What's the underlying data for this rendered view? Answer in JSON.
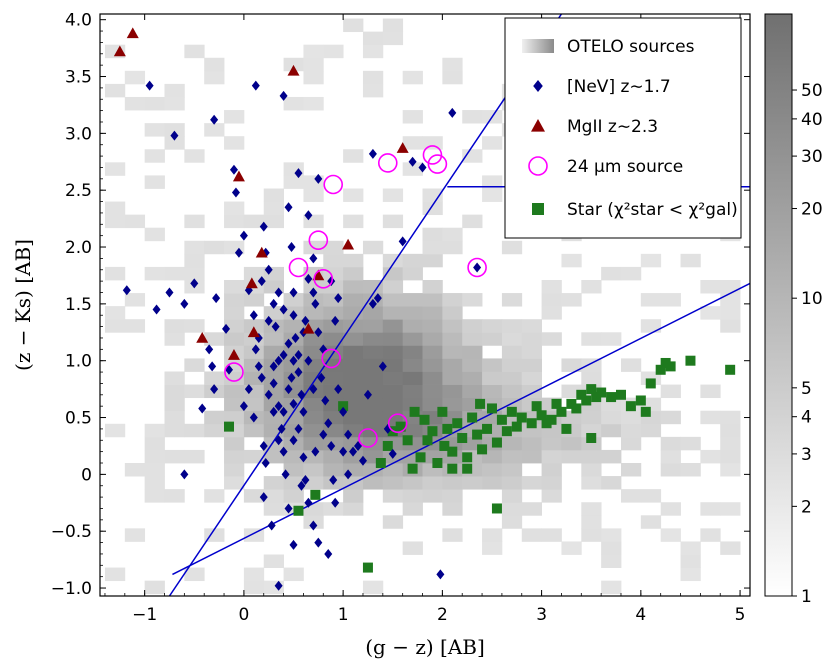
{
  "chart_data": {
    "type": "scatter",
    "xlabel": "(g − z) [AB]",
    "ylabel": "(z − Ks) [AB]",
    "xlim": [
      -1.45,
      5.1
    ],
    "ylim": [
      -1.07,
      4.05
    ],
    "xticks": [
      -1,
      0,
      1,
      2,
      3,
      4,
      5
    ],
    "xtick_labels": [
      "−1",
      "0",
      "1",
      "2",
      "3",
      "4",
      "5"
    ],
    "yticks": [
      -1.0,
      -0.5,
      0.0,
      0.5,
      1.0,
      1.5,
      2.0,
      2.5,
      3.0,
      3.5,
      4.0
    ],
    "ytick_labels": [
      "−1.0",
      "−0.5",
      "0",
      "0.5",
      "1.0",
      "1.5",
      "2.0",
      "2.5",
      "3.0",
      "3.5",
      "4.0"
    ],
    "grid": false,
    "legend_position": "top-right",
    "legend": [
      {
        "key": "otelo",
        "label": "OTELO sources"
      },
      {
        "key": "nev",
        "label": "[NeV] z∼1.7"
      },
      {
        "key": "mgii",
        "label": "MgII z∼2.3"
      },
      {
        "key": "mips",
        "label": "24 μm source"
      },
      {
        "key": "star",
        "label": "Star (χ²star < χ²gal)"
      }
    ],
    "colorbar": {
      "scale": "log",
      "range": [
        1,
        90
      ],
      "ticks": [
        1,
        2,
        3,
        4,
        5,
        10,
        20,
        30,
        40,
        50
      ],
      "tick_labels": [
        "1",
        "2",
        "3",
        "4",
        "5",
        "10",
        "20",
        "30",
        "40",
        "50"
      ]
    },
    "colors": {
      "nev": "#00008b",
      "mgii": "#8b0000",
      "mips": "#ff00ff",
      "star": "#1e7a1e",
      "lines": "#0000cc"
    },
    "series": [
      {
        "name": "[NeV] z∼1.7",
        "marker": "diamond",
        "points": [
          [
            -0.95,
            3.42
          ],
          [
            -0.7,
            2.98
          ],
          [
            -0.3,
            3.12
          ],
          [
            0.12,
            3.42
          ],
          [
            0.4,
            3.33
          ],
          [
            -1.18,
            1.62
          ],
          [
            -0.88,
            1.45
          ],
          [
            -0.75,
            1.6
          ],
          [
            -0.6,
            1.5
          ],
          [
            -0.5,
            1.68
          ],
          [
            -0.35,
            1.1
          ],
          [
            -0.32,
            0.95
          ],
          [
            -0.28,
            1.55
          ],
          [
            -0.3,
            0.75
          ],
          [
            -0.18,
            1.28
          ],
          [
            -0.15,
            0.92
          ],
          [
            -0.42,
            0.58
          ],
          [
            -0.6,
            0.0
          ],
          [
            -0.1,
            2.68
          ],
          [
            -0.08,
            2.48
          ],
          [
            0.0,
            2.1
          ],
          [
            -0.05,
            1.95
          ],
          [
            0.05,
            1.62
          ],
          [
            0.1,
            1.4
          ],
          [
            0.15,
            1.2
          ],
          [
            0.18,
            0.85
          ],
          [
            0.05,
            0.75
          ],
          [
            0.0,
            0.6
          ],
          [
            0.1,
            0.5
          ],
          [
            0.2,
            0.25
          ],
          [
            0.22,
            0.1
          ],
          [
            0.2,
            -0.2
          ],
          [
            0.12,
            1.1
          ],
          [
            0.18,
            1.7
          ],
          [
            0.2,
            2.18
          ],
          [
            0.22,
            1.95
          ],
          [
            0.25,
            1.8
          ],
          [
            0.3,
            1.5
          ],
          [
            0.32,
            1.3
          ],
          [
            0.35,
            1.0
          ],
          [
            0.3,
            0.8
          ],
          [
            0.35,
            0.6
          ],
          [
            0.38,
            0.4
          ],
          [
            0.4,
            0.2
          ],
          [
            0.42,
            0.0
          ],
          [
            0.45,
            -0.3
          ],
          [
            0.28,
            -0.45
          ],
          [
            0.5,
            -0.62
          ],
          [
            0.35,
            -0.98
          ],
          [
            0.45,
            2.35
          ],
          [
            0.48,
            2.0
          ],
          [
            0.5,
            1.6
          ],
          [
            0.5,
            1.4
          ],
          [
            0.52,
            1.2
          ],
          [
            0.5,
            1.0
          ],
          [
            0.55,
            0.9
          ],
          [
            0.58,
            0.7
          ],
          [
            0.6,
            0.55
          ],
          [
            0.55,
            0.4
          ],
          [
            0.6,
            0.15
          ],
          [
            0.62,
            -0.05
          ],
          [
            0.65,
            -0.25
          ],
          [
            0.7,
            -0.45
          ],
          [
            0.75,
            -0.6
          ],
          [
            0.55,
            2.65
          ],
          [
            0.65,
            2.28
          ],
          [
            0.7,
            1.9
          ],
          [
            0.72,
            1.5
          ],
          [
            0.75,
            1.25
          ],
          [
            0.8,
            1.1
          ],
          [
            0.78,
            0.85
          ],
          [
            0.82,
            0.65
          ],
          [
            0.85,
            0.45
          ],
          [
            0.88,
            0.25
          ],
          [
            0.9,
            -0.05
          ],
          [
            0.92,
            -0.25
          ],
          [
            0.85,
            -0.7
          ],
          [
            0.65,
            1.72
          ],
          [
            0.7,
            1.6
          ],
          [
            0.75,
            2.6
          ],
          [
            0.45,
            0.75
          ],
          [
            0.4,
            0.55
          ],
          [
            0.45,
            1.15
          ],
          [
            0.55,
            1.05
          ],
          [
            0.4,
            1.05
          ],
          [
            0.48,
            0.85
          ],
          [
            0.6,
            1.25
          ],
          [
            0.3,
            0.95
          ],
          [
            0.25,
            0.7
          ],
          [
            0.3,
            0.55
          ],
          [
            0.35,
            0.3
          ],
          [
            0.95,
            0.75
          ],
          [
            1.0,
            0.55
          ],
          [
            1.05,
            0.35
          ],
          [
            1.0,
            0.2
          ],
          [
            1.05,
            0.0
          ],
          [
            1.1,
            0.2
          ],
          [
            1.15,
            0.25
          ],
          [
            1.2,
            0.12
          ],
          [
            1.25,
            0.7
          ],
          [
            1.3,
            1.5
          ],
          [
            1.4,
            0.95
          ],
          [
            1.45,
            0.4
          ],
          [
            1.6,
            2.05
          ],
          [
            1.3,
            2.82
          ],
          [
            1.7,
            2.75
          ],
          [
            1.8,
            2.7
          ],
          [
            2.1,
            3.18
          ],
          [
            1.35,
            1.55
          ],
          [
            0.95,
            1.55
          ],
          [
            0.92,
            1.35
          ],
          [
            0.88,
            1.7
          ],
          [
            1.5,
            0.18
          ],
          [
            1.98,
            -0.88
          ],
          [
            2.35,
            1.82
          ],
          [
            0.65,
            1.0
          ],
          [
            0.7,
            0.75
          ],
          [
            0.5,
            0.3
          ],
          [
            0.58,
            -0.1
          ],
          [
            0.35,
            1.6
          ],
          [
            0.15,
            0.95
          ],
          [
            0.25,
            1.35
          ],
          [
            0.4,
            1.45
          ],
          [
            0.62,
            1.35
          ],
          [
            0.5,
            0.62
          ],
          [
            0.8,
            0.35
          ],
          [
            0.72,
            0.2
          ]
        ]
      },
      {
        "name": "MgII z∼2.3",
        "marker": "triangle",
        "points": [
          [
            -1.25,
            3.72
          ],
          [
            -1.12,
            3.88
          ],
          [
            0.5,
            3.55
          ],
          [
            -0.05,
            2.62
          ],
          [
            0.08,
            1.68
          ],
          [
            -0.42,
            1.2
          ],
          [
            -0.1,
            1.05
          ],
          [
            0.1,
            1.25
          ],
          [
            0.18,
            1.95
          ],
          [
            0.65,
            1.28
          ],
          [
            0.75,
            1.75
          ],
          [
            1.05,
            2.02
          ],
          [
            1.6,
            2.87
          ]
        ]
      },
      {
        "name": "24 μm source",
        "marker": "circle",
        "points": [
          [
            -0.1,
            0.9
          ],
          [
            0.55,
            1.82
          ],
          [
            0.75,
            2.06
          ],
          [
            0.8,
            1.72
          ],
          [
            0.88,
            1.02
          ],
          [
            0.9,
            2.55
          ],
          [
            1.25,
            0.32
          ],
          [
            1.45,
            2.74
          ],
          [
            1.55,
            0.45
          ],
          [
            1.9,
            2.81
          ],
          [
            1.95,
            2.73
          ],
          [
            2.35,
            1.82
          ]
        ]
      },
      {
        "name": "Star (χ²star < χ²gal)",
        "marker": "square",
        "points": [
          [
            -0.15,
            0.42
          ],
          [
            0.55,
            -0.32
          ],
          [
            0.72,
            -0.18
          ],
          [
            1.0,
            0.6
          ],
          [
            1.25,
            -0.82
          ],
          [
            1.38,
            0.1
          ],
          [
            1.45,
            0.25
          ],
          [
            1.5,
            0.38
          ],
          [
            1.58,
            0.42
          ],
          [
            1.65,
            0.3
          ],
          [
            1.72,
            0.55
          ],
          [
            1.78,
            0.15
          ],
          [
            1.82,
            0.48
          ],
          [
            1.85,
            0.3
          ],
          [
            1.9,
            0.38
          ],
          [
            1.95,
            0.1
          ],
          [
            2.0,
            0.55
          ],
          [
            2.02,
            0.25
          ],
          [
            2.05,
            0.4
          ],
          [
            2.1,
            0.2
          ],
          [
            2.15,
            0.45
          ],
          [
            2.2,
            0.32
          ],
          [
            2.25,
            0.15
          ],
          [
            2.3,
            0.5
          ],
          [
            2.35,
            0.35
          ],
          [
            2.4,
            0.22
          ],
          [
            2.45,
            0.4
          ],
          [
            2.5,
            0.58
          ],
          [
            2.55,
            0.28
          ],
          [
            2.6,
            0.48
          ],
          [
            2.65,
            0.38
          ],
          [
            2.7,
            0.55
          ],
          [
            2.75,
            0.42
          ],
          [
            2.8,
            0.5
          ],
          [
            2.9,
            0.45
          ],
          [
            3.0,
            0.52
          ],
          [
            3.1,
            0.48
          ],
          [
            3.2,
            0.55
          ],
          [
            3.25,
            0.4
          ],
          [
            3.3,
            0.62
          ],
          [
            3.35,
            0.58
          ],
          [
            3.4,
            0.7
          ],
          [
            3.45,
            0.65
          ],
          [
            3.5,
            0.75
          ],
          [
            3.55,
            0.68
          ],
          [
            3.6,
            0.72
          ],
          [
            3.7,
            0.68
          ],
          [
            3.8,
            0.7
          ],
          [
            3.9,
            0.6
          ],
          [
            4.0,
            0.65
          ],
          [
            4.05,
            0.55
          ],
          [
            4.1,
            0.8
          ],
          [
            4.2,
            0.92
          ],
          [
            4.25,
            0.98
          ],
          [
            4.3,
            0.95
          ],
          [
            4.5,
            1.0
          ],
          [
            4.9,
            0.92
          ],
          [
            3.5,
            0.32
          ],
          [
            2.55,
            -0.3
          ],
          [
            2.1,
            0.05
          ],
          [
            2.25,
            0.05
          ],
          [
            2.38,
            0.62
          ],
          [
            2.95,
            0.6
          ],
          [
            3.05,
            0.45
          ],
          [
            3.15,
            0.62
          ],
          [
            1.7,
            0.05
          ]
        ]
      }
    ],
    "lines": [
      [
        [
          -0.75,
          -1.07
        ],
        [
          3.2,
          4.05
        ]
      ],
      [
        [
          -0.72,
          -0.88
        ],
        [
          5.1,
          1.68
        ]
      ],
      [
        [
          2.05,
          2.53
        ],
        [
          5.1,
          2.53
        ]
      ]
    ]
  }
}
